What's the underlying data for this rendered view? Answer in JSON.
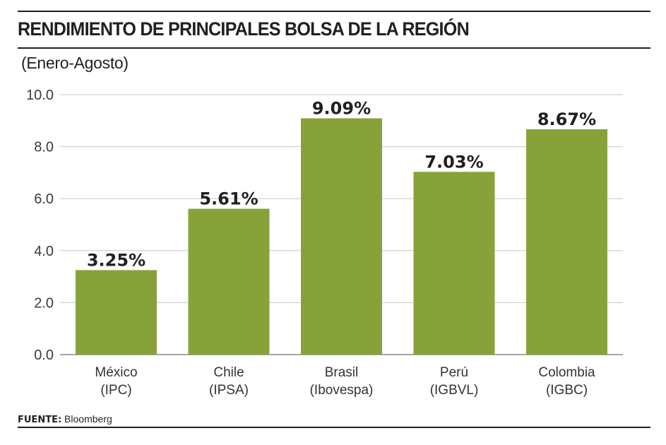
{
  "header": {
    "title": "RENDIMIENTO DE PRINCIPALES BOLSA DE LA REGIÓN",
    "subtitle": "(Enero-Agosto)"
  },
  "footer": {
    "source_label": "FUENTE:",
    "source_value": "Bloomberg"
  },
  "colors": {
    "bar": "#88a23a",
    "grid": "#c8c8c8",
    "text": "#231f20"
  },
  "chart_data": {
    "type": "bar",
    "title": "RENDIMIENTO DE PRINCIPALES BOLSA DE LA REGIÓN",
    "subtitle": "(Enero-Agosto)",
    "xlabel": "",
    "ylabel": "",
    "ylim": [
      0,
      10
    ],
    "yticks": [
      0,
      2,
      4,
      6,
      8,
      10
    ],
    "ytick_labels": [
      "0.0",
      "2.0",
      "4.0",
      "6.0",
      "8.0",
      "10.0"
    ],
    "grid": true,
    "legend": "none",
    "categories": [
      {
        "name": "México",
        "index": "(IPC)"
      },
      {
        "name": "Chile",
        "index": "(IPSA)"
      },
      {
        "name": "Brasil",
        "index": "(Ibovespa)"
      },
      {
        "name": "Perú",
        "index": "(IGBVL)"
      },
      {
        "name": "Colombia",
        "index": "(IGBC)"
      }
    ],
    "values": [
      3.25,
      5.61,
      9.09,
      7.03,
      8.67
    ],
    "value_labels": [
      "3.25%",
      "5.61%",
      "9.09%",
      "7.03%",
      "8.67%"
    ]
  }
}
